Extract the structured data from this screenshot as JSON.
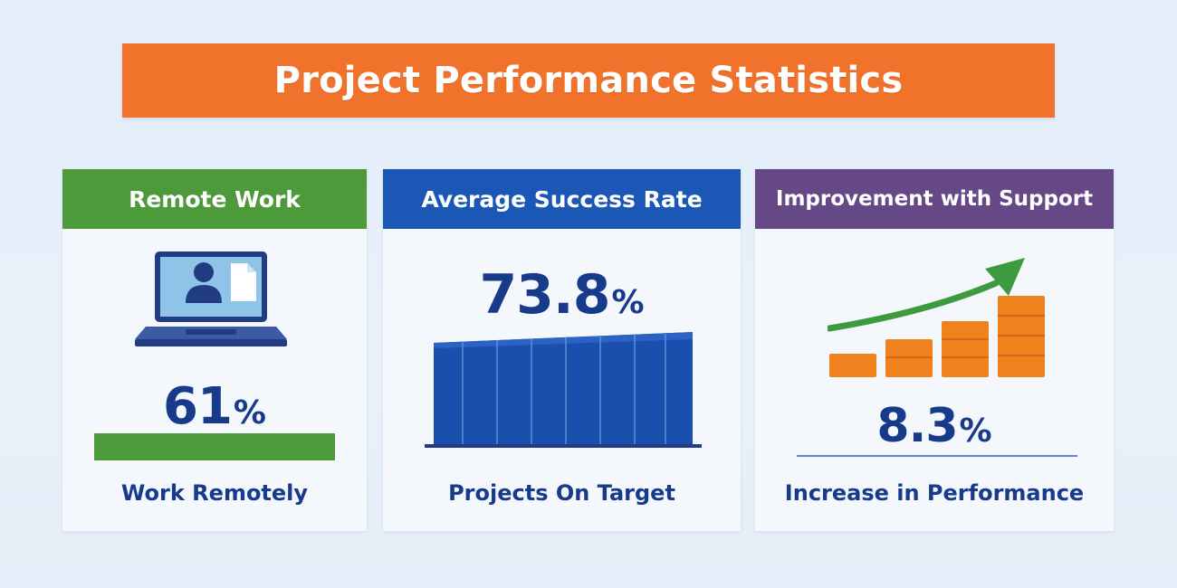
{
  "title": "Project Performance Statistics",
  "colors": {
    "title_bg": "#f0722b",
    "remote_header": "#4c9a3a",
    "success_header": "#1b57b4",
    "improve_header": "#664887",
    "text_primary": "#173a8a",
    "bar_orange": "#f0821e",
    "arrow_green": "#3d9a3e"
  },
  "cards": {
    "remote": {
      "header": "Remote Work",
      "icon": "laptop-user-icon",
      "value": "61",
      "unit": "%",
      "progress": 0.61,
      "caption": "Work Remotely"
    },
    "success": {
      "header": "Average Success Rate",
      "icon": "bar-block-icon",
      "value": "73.8",
      "unit": "%",
      "caption": "Projects On Target"
    },
    "improve": {
      "header": "Improvement with Support",
      "icon": "growth-chart-arrow-icon",
      "value": "8.3",
      "unit": "%",
      "caption": "Increase in Performance"
    }
  }
}
